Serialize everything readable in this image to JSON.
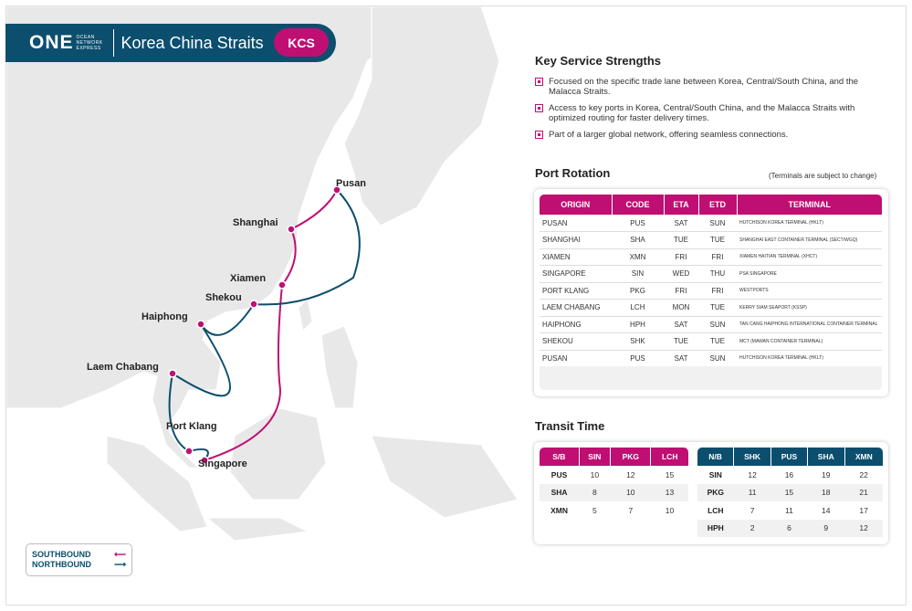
{
  "header": {
    "logo": "ONE",
    "logo_sub": [
      "OCEAN",
      "NETWORK",
      "EXPRESS"
    ],
    "title": "Korea China Straits",
    "code": "KCS"
  },
  "colors": {
    "southbound": "#bf0f72",
    "northbound": "#0b4e6e"
  },
  "ports": [
    "Pusan",
    "Shanghai",
    "Xiamen",
    "Shekou",
    "Haiphong",
    "Laem Chabang",
    "Port Klang",
    "Singapore"
  ],
  "legend": {
    "southbound": "SOUTHBOUND",
    "northbound": "NORTHBOUND"
  },
  "strengths": {
    "title": "Key Service Strengths",
    "items": [
      "Focused on the specific trade lane between Korea, Central/South China, and the Malacca Straits.",
      "Access to key ports in Korea, Central/South China, and the Malacca Straits with optimized routing for faster delivery times.",
      "Part of a larger global network, offering seamless connections."
    ]
  },
  "rotation": {
    "title": "Port Rotation",
    "note": "(Terminals are subject to change)",
    "headers": [
      "ORIGIN",
      "CODE",
      "ETA",
      "ETD",
      "TERMINAL"
    ],
    "rows": [
      [
        "PUSAN",
        "PUS",
        "SAT",
        "SUN",
        "HUTCHISON KOREA TERMINAL (HKLT)"
      ],
      [
        "SHANGHAI",
        "SHA",
        "TUE",
        "TUE",
        "SHANGHAI EAST CONTAINER TERMINAL (SECT/WGQ)"
      ],
      [
        "XIAMEN",
        "XMN",
        "FRI",
        "FRI",
        "XIAMEN HAITIAN TERMINAL (XHCT)"
      ],
      [
        "SINGAPORE",
        "SIN",
        "WED",
        "THU",
        "PSA SINGAPORE"
      ],
      [
        "PORT KLANG",
        "PKG",
        "FRI",
        "FRI",
        "WESTPORTS"
      ],
      [
        "LAEM CHABANG",
        "LCH",
        "MON",
        "TUE",
        "KERRY SIAM SEAPORT (KSSP)"
      ],
      [
        "HAIPHONG",
        "HPH",
        "SAT",
        "SUN",
        "TAN CANG HAIPHONG INTERNATIONAL CONTAINER TERMINAL"
      ],
      [
        "SHEKOU",
        "SHK",
        "TUE",
        "TUE",
        "MCT (MAWAN CONTAINER TERMINAL)"
      ],
      [
        "PUSAN",
        "PUS",
        "SAT",
        "SUN",
        "HUTCHISON KOREA TERMINAL (HKLT)"
      ]
    ]
  },
  "transit": {
    "title": "Transit Time",
    "sb": {
      "headers": [
        "S/B",
        "SIN",
        "PKG",
        "LCH"
      ],
      "rows": [
        [
          "PUS",
          "10",
          "12",
          "15"
        ],
        [
          "SHA",
          "8",
          "10",
          "13"
        ],
        [
          "XMN",
          "5",
          "7",
          "10"
        ]
      ]
    },
    "nb": {
      "headers": [
        "N/B",
        "SHK",
        "PUS",
        "SHA",
        "XMN"
      ],
      "rows": [
        [
          "SIN",
          "12",
          "16",
          "19",
          "22"
        ],
        [
          "PKG",
          "11",
          "15",
          "18",
          "21"
        ],
        [
          "LCH",
          "7",
          "11",
          "14",
          "17"
        ],
        [
          "HPH",
          "2",
          "6",
          "9",
          "12"
        ]
      ]
    }
  }
}
